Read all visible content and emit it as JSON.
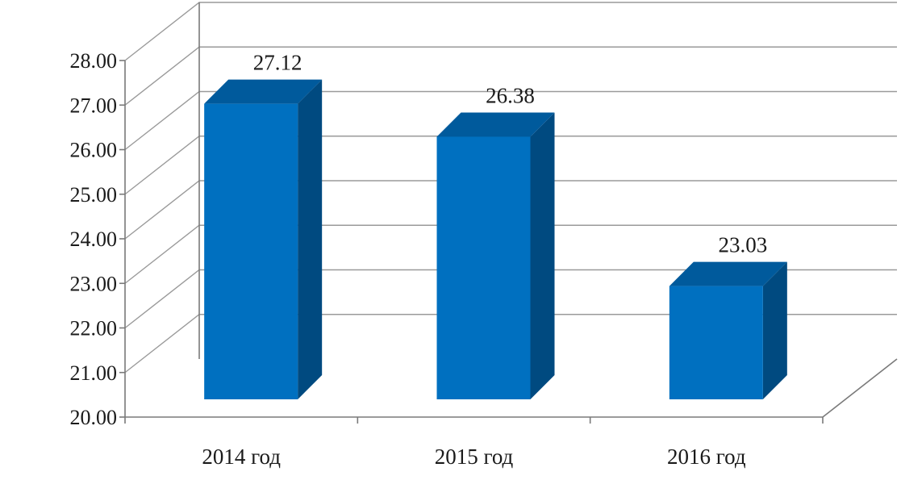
{
  "chart_data": {
    "type": "bar",
    "title": "",
    "xlabel": "",
    "ylabel": "",
    "categories": [
      "2014 год",
      "2015 год",
      "2016 год"
    ],
    "values": [
      27.12,
      26.38,
      23.03
    ],
    "data_labels": [
      "27.12",
      "26.38",
      "23.03"
    ],
    "ylim": [
      20.0,
      28.0
    ],
    "y_ticks": [
      "20.00",
      "21.00",
      "22.00",
      "23.00",
      "24.00",
      "25.00",
      "26.00",
      "27.00",
      "28.00"
    ],
    "grid": true,
    "legend": "none",
    "style": "3d-column",
    "colors": {
      "front": "#0070c0",
      "side": "#004a80",
      "top": "#005a9c"
    }
  }
}
